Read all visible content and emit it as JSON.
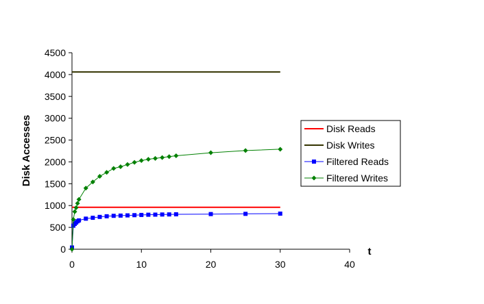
{
  "chart_data": {
    "type": "line",
    "title": "",
    "xlabel": "t",
    "ylabel": "Disk Accesses",
    "xlim": [
      0,
      40
    ],
    "ylim": [
      0,
      4500
    ],
    "x_ticks": [
      "0",
      "10",
      "20",
      "30",
      "40"
    ],
    "y_ticks": [
      "0",
      "500",
      "1000",
      "1500",
      "2000",
      "2500",
      "3000",
      "3500",
      "4000",
      "4500"
    ],
    "grid": false,
    "legend_position": "right",
    "series": [
      {
        "name": "Disk Reads",
        "color": "#ff0000",
        "marker": "none",
        "x": [
          0,
          30
        ],
        "y": [
          960,
          960
        ]
      },
      {
        "name": "Disk Writes",
        "color": "#333300",
        "marker": "none",
        "x": [
          0,
          30
        ],
        "y": [
          4060,
          4060
        ]
      },
      {
        "name": "Filtered Reads",
        "color": "#0000ff",
        "marker": "square",
        "x": [
          0,
          0.2,
          0.4,
          0.6,
          0.8,
          1,
          2,
          3,
          4,
          5,
          6,
          7,
          8,
          9,
          10,
          11,
          12,
          13,
          14,
          15,
          20,
          25,
          30
        ],
        "y": [
          40,
          540,
          580,
          610,
          640,
          660,
          700,
          720,
          740,
          755,
          765,
          770,
          775,
          780,
          785,
          790,
          792,
          795,
          797,
          800,
          805,
          810,
          815
        ]
      },
      {
        "name": "Filtered Writes",
        "color": "#008000",
        "marker": "diamond",
        "x": [
          0,
          0.2,
          0.4,
          0.6,
          0.8,
          1,
          2,
          3,
          4,
          5,
          6,
          7,
          8,
          9,
          10,
          11,
          12,
          13,
          14,
          15,
          20,
          25,
          30
        ],
        "y": [
          0,
          680,
          860,
          950,
          1050,
          1140,
          1400,
          1540,
          1670,
          1760,
          1850,
          1890,
          1940,
          1990,
          2030,
          2060,
          2080,
          2100,
          2120,
          2140,
          2210,
          2260,
          2290
        ]
      }
    ]
  }
}
